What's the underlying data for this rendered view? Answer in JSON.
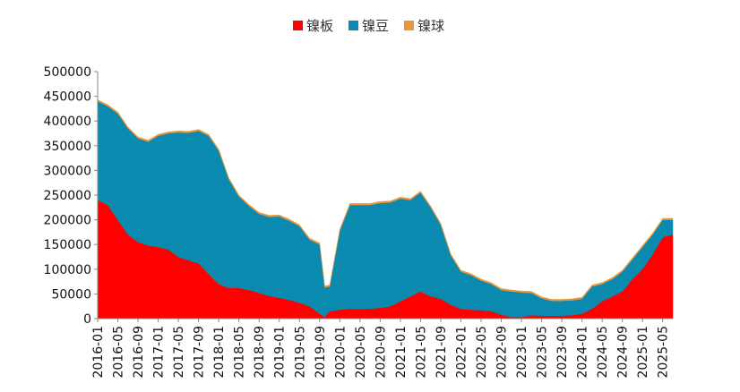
{
  "chart_data": {
    "type": "area",
    "stacked": true,
    "title": "",
    "xlabel": "",
    "ylabel": "",
    "ylim": [
      0,
      500000
    ],
    "yticks": [
      0,
      50000,
      100000,
      150000,
      200000,
      250000,
      300000,
      350000,
      400000,
      450000,
      500000
    ],
    "legend_position": "top-center",
    "grid": false,
    "x_tick_labels": [
      "2016-01",
      "2016-05",
      "2016-09",
      "2017-01",
      "2017-05",
      "2017-09",
      "2018-01",
      "2018-05",
      "2018-09",
      "2019-01",
      "2019-05",
      "2019-09",
      "2020-01",
      "2020-05",
      "2020-09",
      "2021-01",
      "2021-05",
      "2021-09",
      "2022-01",
      "2022-05",
      "2022-09",
      "2023-01",
      "2023-05",
      "2023-09",
      "2024-01",
      "2024-05",
      "2024-09",
      "2025-01",
      "2025-05"
    ],
    "x": [
      "2016-01",
      "2016-03",
      "2016-05",
      "2016-07",
      "2016-09",
      "2016-11",
      "2017-01",
      "2017-03",
      "2017-05",
      "2017-07",
      "2017-09",
      "2017-11",
      "2018-01",
      "2018-03",
      "2018-05",
      "2018-07",
      "2018-09",
      "2018-11",
      "2019-01",
      "2019-03",
      "2019-05",
      "2019-07",
      "2019-09",
      "2019-10",
      "2019-11",
      "2020-01",
      "2020-03",
      "2020-05",
      "2020-07",
      "2020-09",
      "2020-11",
      "2021-01",
      "2021-03",
      "2021-05",
      "2021-07",
      "2021-09",
      "2021-11",
      "2022-01",
      "2022-03",
      "2022-05",
      "2022-07",
      "2022-09",
      "2022-11",
      "2023-01",
      "2023-03",
      "2023-05",
      "2023-07",
      "2023-09",
      "2023-11",
      "2024-01",
      "2024-03",
      "2024-05",
      "2024-07",
      "2024-09",
      "2024-11",
      "2025-01",
      "2025-03",
      "2025-05",
      "2025-07"
    ],
    "series": [
      {
        "name": "镍板",
        "color": "#FF0000",
        "values": [
          240000,
          230000,
          200000,
          170000,
          155000,
          148000,
          145000,
          140000,
          125000,
          118000,
          112000,
          90000,
          70000,
          62000,
          62000,
          58000,
          52000,
          46000,
          42000,
          38000,
          32000,
          25000,
          10000,
          3000,
          15000,
          18000,
          20000,
          20000,
          20000,
          22000,
          25000,
          35000,
          45000,
          55000,
          45000,
          40000,
          28000,
          20000,
          18000,
          17000,
          15000,
          8000,
          3000,
          3000,
          7000,
          6000,
          6000,
          6000,
          7000,
          10000,
          20000,
          35000,
          45000,
          55000,
          80000,
          100000,
          130000,
          165000,
          170000
        ]
      },
      {
        "name": "镍豆",
        "color": "#0A8AAE",
        "values": [
          200000,
          200000,
          215000,
          215000,
          210000,
          210000,
          225000,
          235000,
          252000,
          258000,
          268000,
          280000,
          270000,
          220000,
          185000,
          170000,
          160000,
          160000,
          165000,
          160000,
          155000,
          135000,
          140000,
          60000,
          50000,
          160000,
          210000,
          210000,
          210000,
          212000,
          210000,
          208000,
          195000,
          200000,
          180000,
          150000,
          100000,
          75000,
          70000,
          60000,
          55000,
          50000,
          52000,
          50000,
          45000,
          35000,
          30000,
          30000,
          30000,
          30000,
          45000,
          35000,
          35000,
          40000,
          40000,
          45000,
          40000,
          35000,
          30000
        ]
      },
      {
        "name": "镍球",
        "color": "#E8963C",
        "values": [
          3000,
          3000,
          3000,
          3000,
          3000,
          3000,
          3000,
          3000,
          3000,
          3000,
          3000,
          3000,
          3000,
          3000,
          3000,
          3000,
          3000,
          3000,
          3000,
          3000,
          3000,
          3000,
          3000,
          3000,
          3000,
          3000,
          3000,
          3000,
          3000,
          3000,
          3000,
          3000,
          3000,
          3000,
          3000,
          3000,
          3000,
          3000,
          3000,
          3000,
          3000,
          3000,
          3000,
          3000,
          3000,
          3000,
          3000,
          3000,
          3000,
          3000,
          3000,
          3000,
          3000,
          3000,
          3000,
          3000,
          3000,
          3000,
          3000
        ]
      }
    ]
  }
}
